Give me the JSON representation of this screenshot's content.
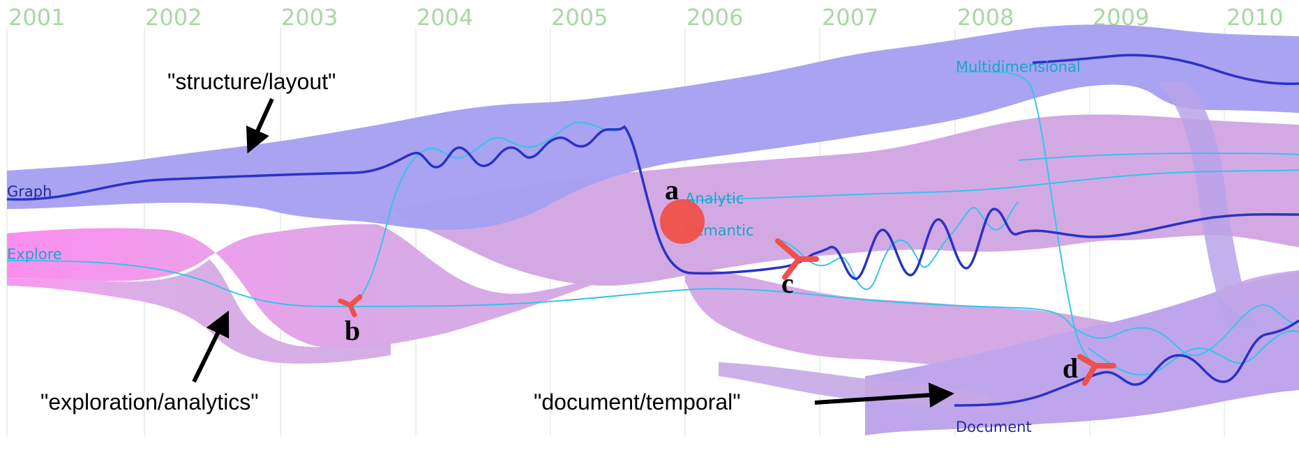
{
  "years": [
    "2001",
    "2002",
    "2003",
    "2004",
    "2005",
    "2006",
    "2007",
    "2008",
    "2009",
    "2010"
  ],
  "keywords": {
    "graph": "Graph",
    "explore": "Explore",
    "analytic": "Analytic",
    "semantic": "Semantic",
    "multidimensional": "Multidimensional",
    "document": "Document"
  },
  "annotations": {
    "structure": "\"structure/layout\"",
    "exploration": "\"exploration/analytics\"",
    "document": "\"document/temporal\""
  },
  "markers": {
    "a": "a",
    "b": "b",
    "c": "c",
    "d": "d"
  },
  "colors": {
    "year_text": "#a6d9a2",
    "grid": "#dfeee0",
    "topic_blue": "#a7a1f2",
    "topic_violet": "#d4a9e4",
    "topic_pink": "#fb8ef0",
    "path_dark": "#2a32c4",
    "path_light": "#35c4ea",
    "event_red": "#f05049",
    "keyword_dark": "#23289a",
    "keyword_light": "#1aa6c7"
  }
}
